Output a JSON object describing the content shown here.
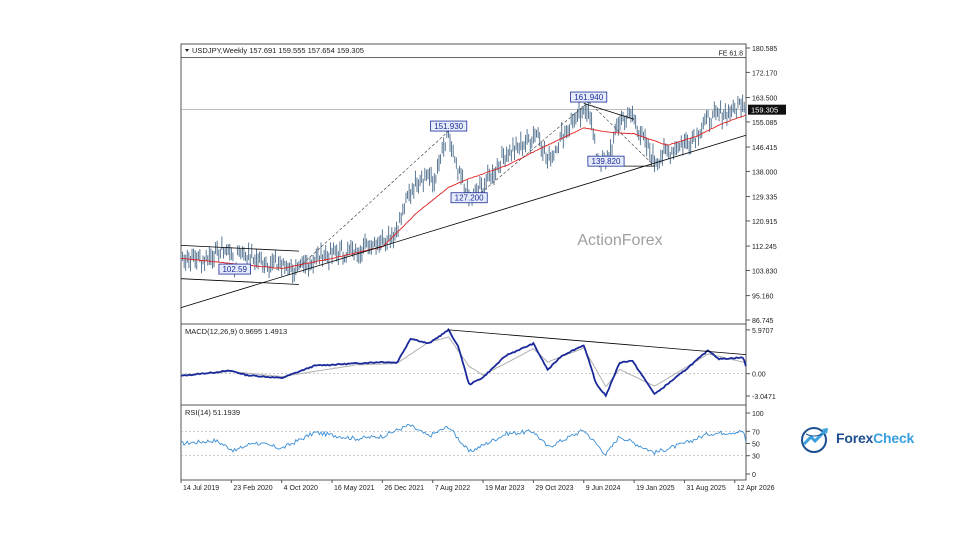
{
  "chart_data": [
    {
      "type": "line",
      "header": "USDJPY,Weekly  157.691 159.555 157.654 159.305",
      "watermark": "ActionForex",
      "price_current": "159.305",
      "y_ticks": [
        "180.585",
        "172.170",
        "163.500",
        "155.085",
        "146.415",
        "138.000",
        "129.335",
        "120.915",
        "112.245",
        "103.830",
        "95.160",
        "86.745"
      ],
      "y_tick_values": [
        180.585,
        172.17,
        163.5,
        155.085,
        146.415,
        138.0,
        129.335,
        120.915,
        112.245,
        103.83,
        95.16,
        86.745
      ],
      "ylim": [
        86.745,
        180.585
      ],
      "fe_label": "FE 61.8",
      "fe_level": 177.3,
      "hline_level": 159.305,
      "annotations": [
        {
          "text": "151.930",
          "date": "2022-10-17",
          "value": 151.93
        },
        {
          "text": "127.200",
          "date": "2023-01-16",
          "value": 127.2
        },
        {
          "text": "161.940",
          "date": "2024-07-01",
          "value": 161.94
        },
        {
          "text": "139.820",
          "date": "2024-09-16",
          "value": 139.82
        },
        {
          "text": "102.59",
          "date": "2020-03-09",
          "value": 102.59
        }
      ],
      "price_keypoints": [
        [
          "2019-07-14",
          108.5
        ],
        [
          "2019-10-01",
          107.5
        ],
        [
          "2019-12-15",
          109.5
        ],
        [
          "2020-02-20",
          111.5
        ],
        [
          "2020-03-09",
          102.6
        ],
        [
          "2020-03-23",
          111.0
        ],
        [
          "2020-06-01",
          107.5
        ],
        [
          "2020-10-04",
          105.5
        ],
        [
          "2020-12-20",
          103.5
        ],
        [
          "2021-03-01",
          108.0
        ],
        [
          "2021-05-16",
          109.5
        ],
        [
          "2021-09-01",
          110.5
        ],
        [
          "2021-12-26",
          114.5
        ],
        [
          "2022-02-01",
          115.5
        ],
        [
          "2022-03-01",
          118.0
        ],
        [
          "2022-04-25",
          130.5
        ],
        [
          "2022-06-01",
          135.5
        ],
        [
          "2022-07-20",
          137.0
        ],
        [
          "2022-08-07",
          133.0
        ],
        [
          "2022-09-20",
          144.5
        ],
        [
          "2022-10-17",
          150.5
        ],
        [
          "2022-11-15",
          140.0
        ],
        [
          "2023-01-16",
          128.5
        ],
        [
          "2023-03-19",
          132.5
        ],
        [
          "2023-05-01",
          137.0
        ],
        [
          "2023-06-30",
          144.0
        ],
        [
          "2023-08-15",
          146.0
        ],
        [
          "2023-10-29",
          150.5
        ],
        [
          "2023-11-15",
          151.5
        ],
        [
          "2024-01-01",
          141.5
        ],
        [
          "2024-03-01",
          150.0
        ],
        [
          "2024-04-26",
          156.0
        ],
        [
          "2024-06-09",
          157.5
        ],
        [
          "2024-07-01",
          161.0
        ],
        [
          "2024-08-05",
          143.5
        ],
        [
          "2024-09-16",
          140.5
        ],
        [
          "2024-11-15",
          155.5
        ],
        [
          "2025-01-10",
          157.5
        ],
        [
          "2025-01-19",
          156.0
        ],
        [
          "2025-02-15",
          151.0
        ],
        [
          "2025-04-21",
          141.5
        ],
        [
          "2025-06-15",
          145.0
        ],
        [
          "2025-08-31",
          147.5
        ],
        [
          "2025-10-20",
          150.5
        ],
        [
          "2025-12-15",
          156.0
        ],
        [
          "2026-02-01",
          157.0
        ],
        [
          "2026-03-15",
          158.5
        ],
        [
          "2026-04-12",
          159.0
        ],
        [
          "2026-05-20",
          163.0
        ],
        [
          "2026-06-01",
          159.3
        ]
      ],
      "ma_keypoints": [
        [
          "2019-07-14",
          108.0
        ],
        [
          "2020-10-04",
          104.5
        ],
        [
          "2021-05-16",
          108.0
        ],
        [
          "2021-12-26",
          112.0
        ],
        [
          "2022-06-01",
          124.0
        ],
        [
          "2022-10-17",
          132.5
        ],
        [
          "2023-01-16",
          135.5
        ],
        [
          "2023-06-30",
          140.0
        ],
        [
          "2023-12-01",
          146.0
        ],
        [
          "2024-06-09",
          153.0
        ],
        [
          "2024-10-01",
          151.5
        ],
        [
          "2025-01-19",
          151.0
        ],
        [
          "2025-06-15",
          147.0
        ],
        [
          "2025-10-20",
          150.0
        ],
        [
          "2026-02-01",
          154.0
        ],
        [
          "2026-06-01",
          157.5
        ]
      ],
      "trend_lines": [
        {
          "from": [
            "2019-07-14",
            91.0
          ],
          "to": [
            "2026-06-01",
            150.5
          ]
        },
        {
          "from": [
            "2019-07-14",
            112.5
          ],
          "to": [
            "2020-12-20",
            110.5
          ]
        },
        {
          "from": [
            "2019-07-14",
            101.0
          ],
          "to": [
            "2020-12-20",
            99.0
          ]
        },
        {
          "from": [
            "2024-06-09",
            161.5
          ],
          "to": [
            "2025-01-19",
            156.0
          ]
        },
        {
          "from": [
            "2024-09-16",
            139.82
          ],
          "to": [
            "2025-04-21",
            139.82
          ]
        }
      ],
      "dashed_lines": [
        {
          "from": [
            "2020-12-20",
            105.0
          ],
          "to": [
            "2022-10-17",
            151.93
          ]
        },
        {
          "from": [
            "2023-01-16",
            127.2
          ],
          "to": [
            "2024-07-01",
            161.94
          ]
        },
        {
          "from": [
            "2024-07-01",
            161.94
          ],
          "to": [
            "2025-04-21",
            139.82
          ]
        }
      ]
    },
    {
      "type": "line",
      "header": "MACD(12,26,9) 0.9695 1.4913",
      "y_ticks": [
        "5.9707",
        "0.00",
        "-3.0471"
      ],
      "y_tick_values": [
        5.9707,
        0.0,
        -3.0471
      ],
      "ylim": [
        -4.0,
        6.5
      ],
      "macd_keypoints": [
        [
          "2019-07-14",
          -0.3
        ],
        [
          "2019-12-15",
          0.2
        ],
        [
          "2020-02-20",
          0.4
        ],
        [
          "2020-05-01",
          -0.2
        ],
        [
          "2020-10-04",
          -0.6
        ],
        [
          "2021-03-01",
          1.1
        ],
        [
          "2021-09-01",
          1.4
        ],
        [
          "2021-12-26",
          1.6
        ],
        [
          "2022-03-01",
          1.5
        ],
        [
          "2022-05-01",
          4.8
        ],
        [
          "2022-07-20",
          4.1
        ],
        [
          "2022-10-17",
          5.97
        ],
        [
          "2022-12-01",
          3.5
        ],
        [
          "2023-01-16",
          -1.5
        ],
        [
          "2023-03-19",
          -0.5
        ],
        [
          "2023-06-30",
          2.5
        ],
        [
          "2023-10-29",
          4.1
        ],
        [
          "2024-01-01",
          0.5
        ],
        [
          "2024-03-01",
          2.4
        ],
        [
          "2024-06-09",
          3.9
        ],
        [
          "2024-08-05",
          -1.5
        ],
        [
          "2024-09-16",
          -3.0
        ],
        [
          "2024-11-15",
          1.5
        ],
        [
          "2025-01-10",
          1.8
        ],
        [
          "2025-04-21",
          -2.8
        ],
        [
          "2025-08-31",
          0.4
        ],
        [
          "2025-12-15",
          3.2
        ],
        [
          "2026-02-01",
          2.0
        ],
        [
          "2026-05-20",
          2.2
        ],
        [
          "2026-06-01",
          0.97
        ]
      ],
      "signal_keypoints": [
        [
          "2019-07-14",
          -0.2
        ],
        [
          "2020-02-20",
          0.3
        ],
        [
          "2020-10-04",
          -0.4
        ],
        [
          "2021-09-01",
          1.2
        ],
        [
          "2022-03-01",
          1.4
        ],
        [
          "2022-07-20",
          4.3
        ],
        [
          "2022-10-17",
          5.0
        ],
        [
          "2023-01-16",
          1.0
        ],
        [
          "2023-03-19",
          -0.2
        ],
        [
          "2023-10-29",
          3.4
        ],
        [
          "2024-01-01",
          1.6
        ],
        [
          "2024-06-09",
          3.5
        ],
        [
          "2024-09-16",
          -1.8
        ],
        [
          "2024-11-15",
          0.6
        ],
        [
          "2025-04-21",
          -1.7
        ],
        [
          "2025-12-15",
          2.7
        ],
        [
          "2026-06-01",
          1.49
        ]
      ],
      "trend_line": {
        "from": [
          "2022-10-17",
          5.97
        ],
        "to": [
          "2026-06-01",
          2.6
        ]
      }
    },
    {
      "type": "line",
      "header": "RSI(14) 51.1939",
      "y_ticks": [
        "100",
        "70",
        "50",
        "30",
        "0"
      ],
      "y_tick_values": [
        100,
        70,
        50,
        30,
        0
      ],
      "ylim": [
        0,
        100
      ],
      "rsi_keypoints": [
        [
          "2019-07-14",
          50
        ],
        [
          "2019-12-15",
          55
        ],
        [
          "2020-03-09",
          38
        ],
        [
          "2020-06-01",
          52
        ],
        [
          "2020-10-04",
          42
        ],
        [
          "2021-03-01",
          68
        ],
        [
          "2021-09-01",
          58
        ],
        [
          "2021-12-26",
          62
        ],
        [
          "2022-04-25",
          80
        ],
        [
          "2022-07-20",
          62
        ],
        [
          "2022-10-17",
          78
        ],
        [
          "2023-01-16",
          36
        ],
        [
          "2023-06-30",
          66
        ],
        [
          "2023-10-29",
          70
        ],
        [
          "2024-01-01",
          44
        ],
        [
          "2024-06-09",
          72
        ],
        [
          "2024-09-16",
          32
        ],
        [
          "2024-11-15",
          62
        ],
        [
          "2025-04-21",
          35
        ],
        [
          "2025-08-31",
          50
        ],
        [
          "2025-12-15",
          66
        ],
        [
          "2026-05-20",
          70
        ],
        [
          "2026-06-01",
          51.19
        ]
      ]
    }
  ],
  "x_ticks": [
    "14 Jul 2019",
    "23 Feb 2020",
    "4 Oct 2020",
    "16 May 2021",
    "26 Dec 2021",
    "7 Aug 2022",
    "19 Mar 2023",
    "29 Oct 2023",
    "9 Jun 2024",
    "19 Jan 2025",
    "31 Aug 2025",
    "12 Apr 2026"
  ],
  "x_tick_dates": [
    "2019-07-14",
    "2020-02-23",
    "2020-10-04",
    "2021-05-16",
    "2021-12-26",
    "2022-08-07",
    "2023-03-19",
    "2023-10-29",
    "2024-06-09",
    "2025-01-19",
    "2025-08-31",
    "2026-04-12"
  ],
  "x_range": [
    "2019-07-14",
    "2026-06-01"
  ],
  "colors": {
    "price": "#4a6b8a",
    "ma": "#e02020",
    "macd": "#1a2a9a",
    "signal": "#b0b0b0",
    "rsi": "#3b8fd6",
    "trend": "#000000",
    "label_border": "#1a2a9a",
    "label_bg": "#e6ecfa"
  },
  "brand": {
    "part1": "Forex",
    "part2": "Check"
  }
}
